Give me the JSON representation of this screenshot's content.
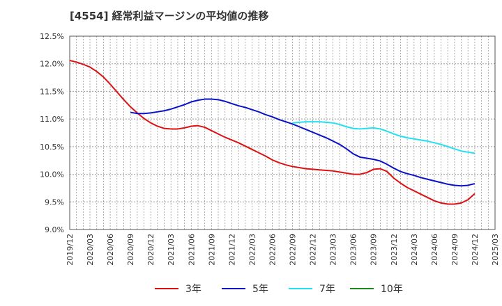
{
  "title": "[4554]  経常利益マージンの平均値の推移",
  "chart_data": {
    "type": "line",
    "title": "[4554]  経常利益マージンの平均値の推移",
    "xlabel": "",
    "ylabel": "",
    "ylim": [
      9.0,
      12.5
    ],
    "y_ticks": [
      "9.0%",
      "9.5%",
      "10.0%",
      "10.5%",
      "11.0%",
      "11.5%",
      "12.0%",
      "12.5%"
    ],
    "x_ticks": [
      "2019/12",
      "2020/03",
      "2020/06",
      "2020/09",
      "2020/12",
      "2021/03",
      "2021/06",
      "2021/09",
      "2021/12",
      "2022/03",
      "2022/06",
      "2022/09",
      "2022/12",
      "2023/03",
      "2023/06",
      "2023/09",
      "2023/12",
      "2024/03",
      "2024/06",
      "2024/09",
      "2024/12",
      "2025/03"
    ],
    "grid": true,
    "legend_position": "bottom",
    "series": [
      {
        "name": "3年",
        "color": "#dd1111",
        "points": [
          [
            "2019/12",
            12.06
          ],
          [
            "2020/01",
            12.03
          ],
          [
            "2020/02",
            11.99
          ],
          [
            "2020/03",
            11.94
          ],
          [
            "2020/04",
            11.86
          ],
          [
            "2020/05",
            11.76
          ],
          [
            "2020/06",
            11.63
          ],
          [
            "2020/07",
            11.49
          ],
          [
            "2020/08",
            11.35
          ],
          [
            "2020/09",
            11.22
          ],
          [
            "2020/10",
            11.11
          ],
          [
            "2020/11",
            11.01
          ],
          [
            "2020/12",
            10.93
          ],
          [
            "2021/01",
            10.87
          ],
          [
            "2021/02",
            10.83
          ],
          [
            "2021/03",
            10.82
          ],
          [
            "2021/04",
            10.82
          ],
          [
            "2021/05",
            10.84
          ],
          [
            "2021/06",
            10.87
          ],
          [
            "2021/07",
            10.88
          ],
          [
            "2021/08",
            10.85
          ],
          [
            "2021/09",
            10.79
          ],
          [
            "2021/10",
            10.73
          ],
          [
            "2021/11",
            10.67
          ],
          [
            "2021/12",
            10.62
          ],
          [
            "2022/01",
            10.57
          ],
          [
            "2022/02",
            10.51
          ],
          [
            "2022/03",
            10.45
          ],
          [
            "2022/04",
            10.39
          ],
          [
            "2022/05",
            10.33
          ],
          [
            "2022/06",
            10.26
          ],
          [
            "2022/07",
            10.21
          ],
          [
            "2022/08",
            10.17
          ],
          [
            "2022/09",
            10.14
          ],
          [
            "2022/10",
            10.12
          ],
          [
            "2022/11",
            10.1
          ],
          [
            "2022/12",
            10.09
          ],
          [
            "2023/01",
            10.08
          ],
          [
            "2023/02",
            10.07
          ],
          [
            "2023/03",
            10.06
          ],
          [
            "2023/04",
            10.04
          ],
          [
            "2023/05",
            10.02
          ],
          [
            "2023/06",
            10.0
          ],
          [
            "2023/07",
            10.0
          ],
          [
            "2023/08",
            10.03
          ],
          [
            "2023/09",
            10.09
          ],
          [
            "2023/10",
            10.1
          ],
          [
            "2023/11",
            10.05
          ],
          [
            "2023/12",
            9.93
          ],
          [
            "2024/01",
            9.84
          ],
          [
            "2024/02",
            9.76
          ],
          [
            "2024/03",
            9.7
          ],
          [
            "2024/04",
            9.64
          ],
          [
            "2024/05",
            9.58
          ],
          [
            "2024/06",
            9.52
          ],
          [
            "2024/07",
            9.48
          ],
          [
            "2024/08",
            9.46
          ],
          [
            "2024/09",
            9.46
          ],
          [
            "2024/10",
            9.48
          ],
          [
            "2024/11",
            9.54
          ],
          [
            "2024/12",
            9.65
          ]
        ]
      },
      {
        "name": "5年",
        "color": "#0a12c8",
        "points": [
          [
            "2020/09",
            11.12
          ],
          [
            "2020/10",
            11.1
          ],
          [
            "2020/11",
            11.1
          ],
          [
            "2020/12",
            11.11
          ],
          [
            "2021/01",
            11.13
          ],
          [
            "2021/02",
            11.15
          ],
          [
            "2021/03",
            11.18
          ],
          [
            "2021/04",
            11.22
          ],
          [
            "2021/05",
            11.26
          ],
          [
            "2021/06",
            11.31
          ],
          [
            "2021/07",
            11.34
          ],
          [
            "2021/08",
            11.36
          ],
          [
            "2021/09",
            11.36
          ],
          [
            "2021/10",
            11.35
          ],
          [
            "2021/11",
            11.32
          ],
          [
            "2021/12",
            11.28
          ],
          [
            "2022/01",
            11.24
          ],
          [
            "2022/02",
            11.21
          ],
          [
            "2022/03",
            11.17
          ],
          [
            "2022/04",
            11.13
          ],
          [
            "2022/05",
            11.08
          ],
          [
            "2022/06",
            11.04
          ],
          [
            "2022/07",
            10.99
          ],
          [
            "2022/08",
            10.95
          ],
          [
            "2022/09",
            10.91
          ],
          [
            "2022/10",
            10.86
          ],
          [
            "2022/11",
            10.81
          ],
          [
            "2022/12",
            10.76
          ],
          [
            "2023/01",
            10.71
          ],
          [
            "2023/02",
            10.66
          ],
          [
            "2023/03",
            10.6
          ],
          [
            "2023/04",
            10.54
          ],
          [
            "2023/05",
            10.46
          ],
          [
            "2023/06",
            10.37
          ],
          [
            "2023/07",
            10.31
          ],
          [
            "2023/08",
            10.29
          ],
          [
            "2023/09",
            10.27
          ],
          [
            "2023/10",
            10.24
          ],
          [
            "2023/11",
            10.18
          ],
          [
            "2023/12",
            10.11
          ],
          [
            "2024/01",
            10.05
          ],
          [
            "2024/02",
            10.01
          ],
          [
            "2024/03",
            9.98
          ],
          [
            "2024/04",
            9.94
          ],
          [
            "2024/05",
            9.91
          ],
          [
            "2024/06",
            9.88
          ],
          [
            "2024/07",
            9.85
          ],
          [
            "2024/08",
            9.82
          ],
          [
            "2024/09",
            9.8
          ],
          [
            "2024/10",
            9.79
          ],
          [
            "2024/11",
            9.8
          ],
          [
            "2024/12",
            9.83
          ]
        ]
      },
      {
        "name": "7年",
        "color": "#22e0f0",
        "points": [
          [
            "2022/09",
            10.93
          ],
          [
            "2022/10",
            10.94
          ],
          [
            "2022/11",
            10.95
          ],
          [
            "2022/12",
            10.95
          ],
          [
            "2023/01",
            10.95
          ],
          [
            "2023/02",
            10.94
          ],
          [
            "2023/03",
            10.93
          ],
          [
            "2023/04",
            10.9
          ],
          [
            "2023/05",
            10.86
          ],
          [
            "2023/06",
            10.83
          ],
          [
            "2023/07",
            10.82
          ],
          [
            "2023/08",
            10.83
          ],
          [
            "2023/09",
            10.84
          ],
          [
            "2023/10",
            10.82
          ],
          [
            "2023/11",
            10.78
          ],
          [
            "2023/12",
            10.73
          ],
          [
            "2024/01",
            10.69
          ],
          [
            "2024/02",
            10.66
          ],
          [
            "2024/03",
            10.64
          ],
          [
            "2024/04",
            10.62
          ],
          [
            "2024/05",
            10.6
          ],
          [
            "2024/06",
            10.57
          ],
          [
            "2024/07",
            10.54
          ],
          [
            "2024/08",
            10.5
          ],
          [
            "2024/09",
            10.46
          ],
          [
            "2024/10",
            10.42
          ],
          [
            "2024/11",
            10.4
          ],
          [
            "2024/12",
            10.38
          ]
        ]
      },
      {
        "name": "10年",
        "color": "#1a8a1a",
        "points": []
      }
    ]
  }
}
